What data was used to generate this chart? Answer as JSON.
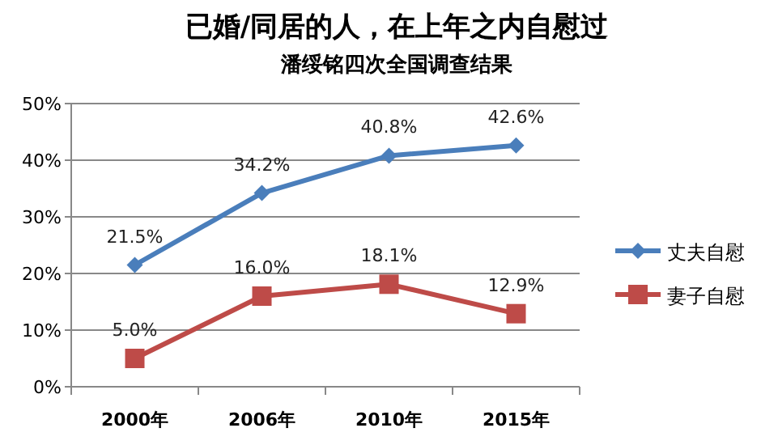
{
  "chart_data": {
    "type": "line",
    "title": "已婚/同居的人，在上年之内自慰过",
    "subtitle": "潘绥铭四次全国调查结果",
    "categories": [
      "2000年",
      "2006年",
      "2010年",
      "2015年"
    ],
    "series": [
      {
        "name": "丈夫自慰",
        "color": "#4a7ebb",
        "values": [
          21.5,
          34.2,
          40.8,
          42.6
        ],
        "marker": "diamond",
        "value_labels": [
          "21.5%",
          "34.2%",
          "40.8%",
          "42.6%"
        ]
      },
      {
        "name": "妻子自慰",
        "color": "#be4b48",
        "values": [
          5.0,
          16.0,
          18.1,
          12.9
        ],
        "marker": "square",
        "value_labels": [
          "5.0%",
          "16.0%",
          "18.1%",
          "12.9%"
        ]
      }
    ],
    "ylim": [
      0,
      50
    ],
    "yticks": [
      {
        "value": 0,
        "label": "0%"
      },
      {
        "value": 10,
        "label": "10%"
      },
      {
        "value": 20,
        "label": "20%"
      },
      {
        "value": 30,
        "label": "30%"
      },
      {
        "value": 40,
        "label": "40%"
      },
      {
        "value": 50,
        "label": "50%"
      }
    ],
    "grid": "y",
    "legend": "right"
  }
}
